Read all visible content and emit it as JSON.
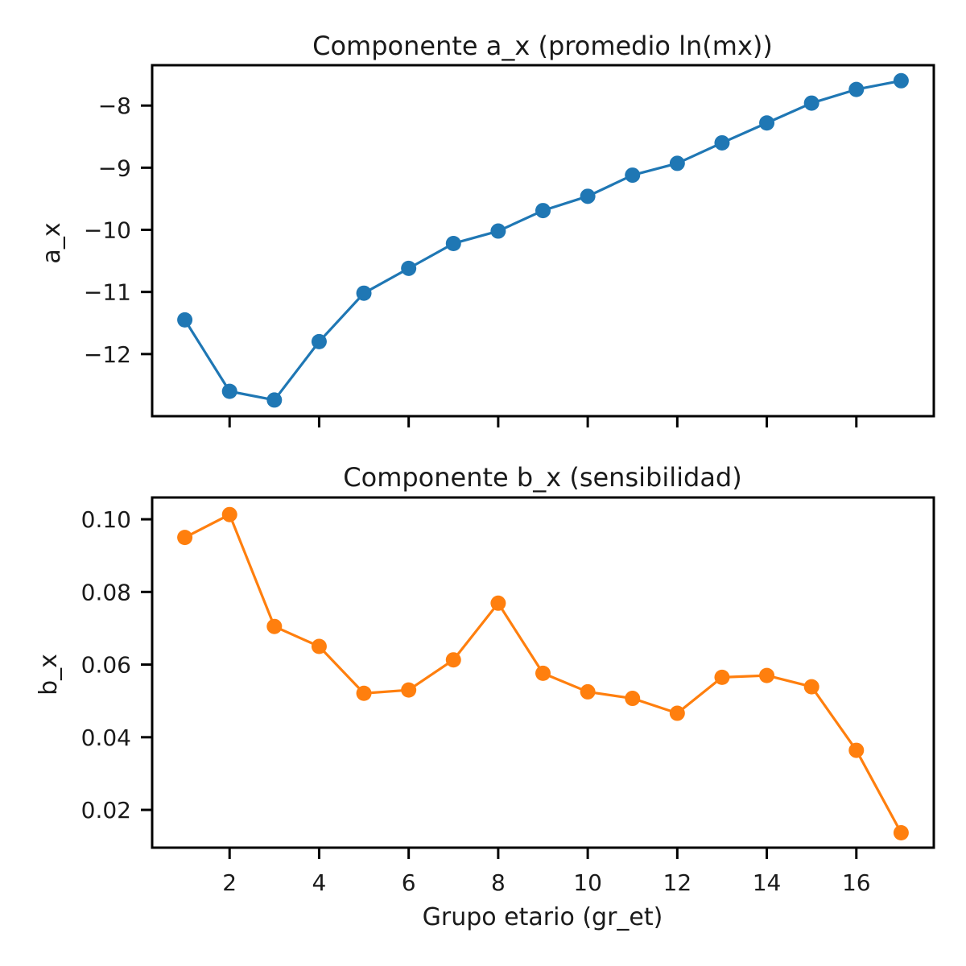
{
  "chart_data": [
    {
      "type": "line",
      "title": "Componente a_x (promedio ln(mx))",
      "xlabel": "",
      "ylabel": "a_x",
      "xlim": [
        0.27,
        17.73
      ],
      "ylim": [
        -13.0,
        -7.35
      ],
      "xticks": [
        2,
        4,
        6,
        8,
        10,
        12,
        14,
        16
      ],
      "show_xtick_labels": false,
      "yticks": [
        -12,
        -11,
        -10,
        -9,
        -8
      ],
      "ytick_labels": [
        "−12",
        "−11",
        "−10",
        "−9",
        "−8"
      ],
      "grid": false,
      "legend": "none",
      "series": [
        {
          "color": "#1f77b4",
          "x": [
            1,
            2,
            3,
            4,
            5,
            6,
            7,
            8,
            9,
            10,
            11,
            12,
            13,
            14,
            15,
            16,
            17
          ],
          "y": [
            -11.45,
            -12.6,
            -12.74,
            -11.8,
            -11.02,
            -10.62,
            -10.22,
            -10.02,
            -9.69,
            -9.46,
            -9.12,
            -8.93,
            -8.6,
            -8.28,
            -7.96,
            -7.74,
            -7.6
          ]
        }
      ]
    },
    {
      "type": "line",
      "title": "Componente b_x (sensibilidad)",
      "xlabel": "Grupo etario (gr_et)",
      "ylabel": "b_x",
      "xlim": [
        0.27,
        17.73
      ],
      "ylim": [
        0.0096,
        0.106
      ],
      "xticks": [
        2,
        4,
        6,
        8,
        10,
        12,
        14,
        16
      ],
      "show_xtick_labels": true,
      "yticks": [
        0.02,
        0.04,
        0.06,
        0.08,
        0.1
      ],
      "ytick_labels": [
        "0.02",
        "0.04",
        "0.06",
        "0.08",
        "0.10"
      ],
      "grid": false,
      "legend": "none",
      "series": [
        {
          "color": "#ff7f0e",
          "x": [
            1,
            2,
            3,
            4,
            5,
            6,
            7,
            8,
            9,
            10,
            11,
            12,
            13,
            14,
            15,
            16,
            17
          ],
          "y": [
            0.095,
            0.1013,
            0.0705,
            0.065,
            0.0521,
            0.053,
            0.0613,
            0.0769,
            0.0576,
            0.0525,
            0.0507,
            0.0466,
            0.0565,
            0.057,
            0.0539,
            0.0364,
            0.0137
          ]
        }
      ]
    }
  ]
}
